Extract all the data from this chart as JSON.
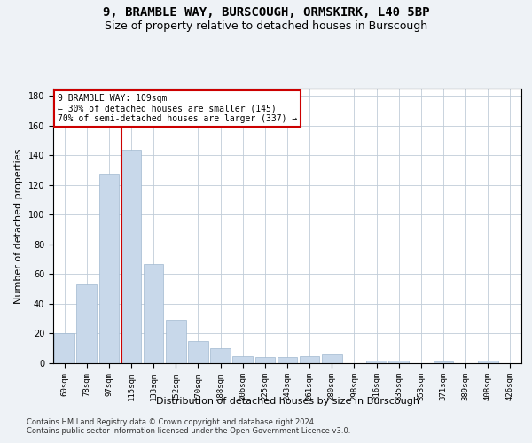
{
  "title1": "9, BRAMBLE WAY, BURSCOUGH, ORMSKIRK, L40 5BP",
  "title2": "Size of property relative to detached houses in Burscough",
  "xlabel": "Distribution of detached houses by size in Burscough",
  "ylabel": "Number of detached properties",
  "categories": [
    "60sqm",
    "78sqm",
    "97sqm",
    "115sqm",
    "133sqm",
    "152sqm",
    "170sqm",
    "188sqm",
    "206sqm",
    "225sqm",
    "243sqm",
    "261sqm",
    "280sqm",
    "298sqm",
    "316sqm",
    "335sqm",
    "353sqm",
    "371sqm",
    "389sqm",
    "408sqm",
    "426sqm"
  ],
  "values": [
    20,
    53,
    128,
    144,
    67,
    29,
    15,
    10,
    5,
    4,
    4,
    5,
    6,
    0,
    2,
    2,
    0,
    1,
    0,
    2,
    0
  ],
  "bar_color": "#c8d8ea",
  "bar_edge_color": "#a0b8d0",
  "vline_x": 2.55,
  "vline_color": "#cc0000",
  "annotation_text": "9 BRAMBLE WAY: 109sqm\n← 30% of detached houses are smaller (145)\n70% of semi-detached houses are larger (337) →",
  "annotation_box_color": "#ffffff",
  "annotation_box_edge_color": "#cc0000",
  "ylim": [
    0,
    185
  ],
  "yticks": [
    0,
    20,
    40,
    60,
    80,
    100,
    120,
    140,
    160,
    180
  ],
  "footer1": "Contains HM Land Registry data © Crown copyright and database right 2024.",
  "footer2": "Contains public sector information licensed under the Open Government Licence v3.0.",
  "bg_color": "#eef2f6",
  "plot_bg_color": "#ffffff",
  "grid_color": "#c0ccd8",
  "title1_fontsize": 10,
  "title2_fontsize": 9,
  "tick_fontsize": 6.5,
  "ylabel_fontsize": 8,
  "xlabel_fontsize": 8,
  "footer_fontsize": 6,
  "annot_fontsize": 7
}
